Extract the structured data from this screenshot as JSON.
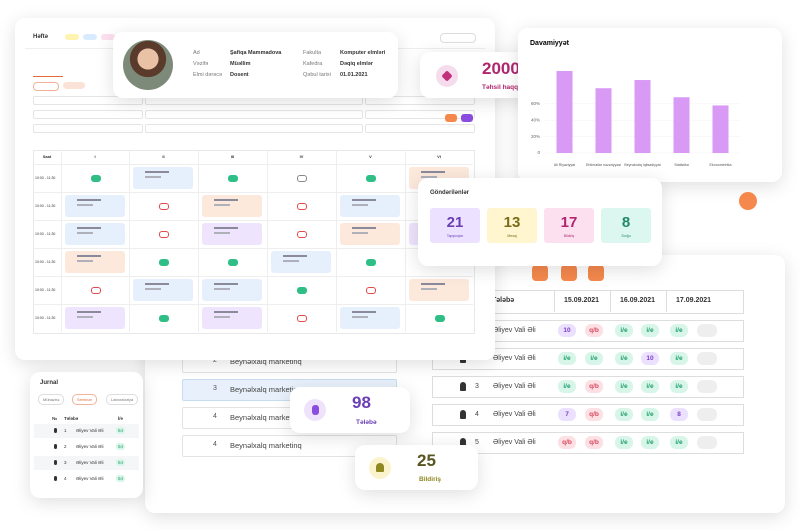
{
  "schedule": {
    "title": "Həftə",
    "columns": [
      "Saat",
      "I",
      "II",
      "III",
      "IV",
      "V",
      "VI"
    ],
    "times": [
      "10:00 - 11:30",
      "10:00 - 11:30",
      "10:00 - 11:30",
      "10:00 - 11:30",
      "10:00 - 11:30",
      "10:00 - 11:30"
    ]
  },
  "profile": {
    "fields": [
      {
        "label": "Ad",
        "value": "Şafiqa Mammadova"
      },
      {
        "label": "Vəzifə",
        "value": "Müəllim"
      },
      {
        "label": "Elmi dərəcə",
        "value": "Dosent"
      },
      {
        "label": "Fakulta",
        "value": "Komputer elmləri"
      },
      {
        "label": "Kafedra",
        "value": "Dəqiq elmlər"
      },
      {
        "label": "Qəbul tarixi",
        "value": "01.01.2021"
      }
    ]
  },
  "fee": {
    "value": "2000",
    "label": "Təhsil haqqı"
  },
  "chart_data": {
    "type": "bar",
    "title": "Davamiyyət",
    "categories": [
      "Ali Riyaziyyat",
      "Ehtimallar nəzəriyyəsi",
      "Beynəlxalq iqtisadiyyat",
      "Statistika",
      "Ekonometrika"
    ],
    "values": [
      100,
      79,
      89,
      68,
      58
    ],
    "color": "#d99af5",
    "ylim": [
      0,
      100
    ],
    "yticks": [
      0,
      {
        "value": 20,
        "label": "20%"
      },
      {
        "value": 40,
        "label": "40%"
      },
      {
        "value": 60,
        "label": "60%"
      }
    ]
  },
  "sent": {
    "title": "Göndərilənlər",
    "items": [
      {
        "value": "21",
        "label": "Tapşırıqlar"
      },
      {
        "value": "13",
        "label": "Mesaj"
      },
      {
        "value": "17",
        "label": "Bildiriş"
      },
      {
        "value": "8",
        "label": "Sorğu"
      }
    ]
  },
  "attendance": {
    "columns": [
      "Tələbə",
      "15.09.2021",
      "16.09.2021",
      "17.09.2021"
    ],
    "rows": [
      {
        "name": "Əliyev Vali Əli",
        "marks": [
          "10",
          "q/b",
          "i/e",
          "i/e",
          "i/e"
        ]
      },
      {
        "number": "2",
        "name": "Əliyev Vali Əli",
        "marks": [
          "i/e",
          "i/e",
          "i/e",
          "10",
          "i/e"
        ]
      },
      {
        "number": "3",
        "name": "Əliyev Vali Əli",
        "marks": [
          "i/e",
          "q/b",
          "i/e",
          "i/e",
          "i/e"
        ]
      },
      {
        "number": "4",
        "name": "Əliyev Vali Əli",
        "marks": [
          "7",
          "q/b",
          "i/e",
          "i/e",
          "8"
        ]
      },
      {
        "number": "5",
        "name": "Əliyev Vali Əli",
        "marks": [
          "q/b",
          "q/b",
          "i/e",
          "i/e",
          "i/e"
        ]
      }
    ]
  },
  "courses": {
    "rows": [
      {
        "number": "2",
        "name": "Beynəlxalq marketinq"
      },
      {
        "number": "3",
        "name": "Beynəlxalq marketinq"
      },
      {
        "number": "4",
        "name": "Beynəlxalq marketinq"
      },
      {
        "number": "4",
        "name": "Beynəlxalq marketinq"
      }
    ]
  },
  "students": {
    "value": "98",
    "label": "Tələbə"
  },
  "notifications": {
    "value": "25",
    "label": "Bildiriş"
  },
  "journal": {
    "title": "Jurnal",
    "tabs": [
      "Mühazirə",
      "Seminar",
      "Laboratoriya"
    ],
    "columns": [
      "№",
      "Tələbə",
      "İ/e"
    ],
    "rows": [
      {
        "number": "1",
        "name": "Əliyev Vali Əli",
        "value": "54"
      },
      {
        "number": "2",
        "name": "Əliyev Vali Əli",
        "value": "54"
      },
      {
        "number": "3",
        "name": "Əliyev Vali Əli",
        "value": "54"
      },
      {
        "number": "4",
        "name": "Əliyev Vali Əli",
        "value": "54"
      }
    ]
  }
}
